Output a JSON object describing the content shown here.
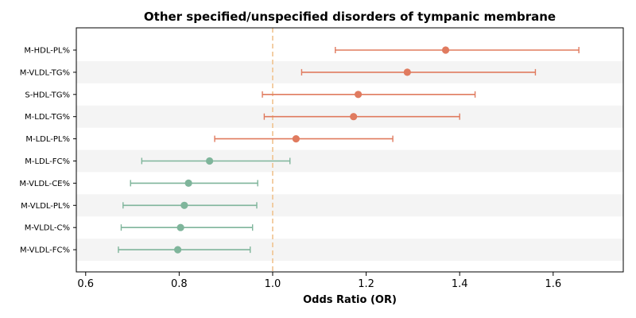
{
  "chart_data": {
    "type": "forest",
    "title": "Other specified/unspecified disorders of tympanic membrane",
    "xlabel": "Odds Ratio (OR)",
    "xlim": [
      0.58,
      1.75
    ],
    "xticks": [
      "0.6",
      "0.8",
      "1.0",
      "1.2",
      "1.4",
      "1.6"
    ],
    "reference_line": 1.0,
    "rows": [
      {
        "label": "M-HDL-PL%",
        "or": 1.37,
        "lo": 1.134,
        "hi": 1.655
      },
      {
        "label": "M-VLDL-TG%",
        "or": 1.288,
        "lo": 1.062,
        "hi": 1.562
      },
      {
        "label": "S-HDL-TG%",
        "or": 1.183,
        "lo": 0.978,
        "hi": 1.433
      },
      {
        "label": "M-LDL-TG%",
        "or": 1.173,
        "lo": 0.982,
        "hi": 1.4
      },
      {
        "label": "M-LDL-PL%",
        "or": 1.05,
        "lo": 0.876,
        "hi": 1.257
      },
      {
        "label": "M-LDL-FC%",
        "or": 0.865,
        "lo": 0.72,
        "hi": 1.037
      },
      {
        "label": "M-VLDL-CE%",
        "or": 0.82,
        "lo": 0.696,
        "hi": 0.968
      },
      {
        "label": "M-VLDL-PL%",
        "or": 0.811,
        "lo": 0.68,
        "hi": 0.966
      },
      {
        "label": "M-VLDL-C%",
        "or": 0.803,
        "lo": 0.676,
        "hi": 0.957
      },
      {
        "label": "M-VLDL-FC%",
        "or": 0.797,
        "lo": 0.67,
        "hi": 0.952
      }
    ],
    "colors": {
      "above_one": "#e07b5f",
      "below_one": "#7fb59b",
      "reference": "#f0c38e",
      "band": "#f4f4f4"
    }
  }
}
